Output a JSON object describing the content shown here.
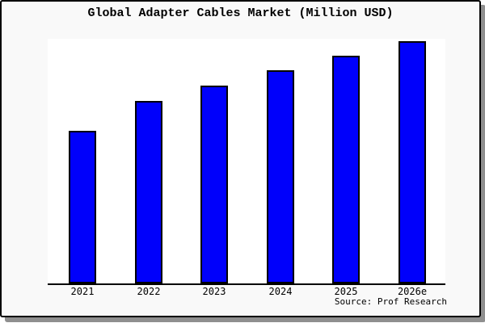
{
  "chart": {
    "title": "Global Adapter Cables Market (Million USD)",
    "source": "Source: Prof Research"
  },
  "chart_data": {
    "type": "bar",
    "title": "Global Adapter Cables Market (Million USD)",
    "categories": [
      "2021",
      "2022",
      "2023",
      "2024",
      "2025",
      "2026e"
    ],
    "values": [
      62.4,
      74.6,
      80.9,
      87.1,
      93.1,
      99.0
    ],
    "value_note": "No numeric y-axis is shown in the image; values are relative bar heights as percent of the plot height (tallest bar ~99%).",
    "xlabel": "",
    "ylabel": "",
    "ylim": [
      0,
      100
    ],
    "grid": false,
    "legend": false,
    "y_axis_visible": false,
    "x_axis_visible": true,
    "annotations": [
      "Source: Prof Research"
    ],
    "bar_color": "#0000fb",
    "bar_border_color": "#000000"
  },
  "colors": {
    "frame_background": "#f9f9f9",
    "plot_background": "#ffffff",
    "bar_fill": "#0000fb",
    "bar_border": "#000000",
    "outer_border": "#000000",
    "shadow": "#8f8f8f",
    "text": "#000000"
  }
}
